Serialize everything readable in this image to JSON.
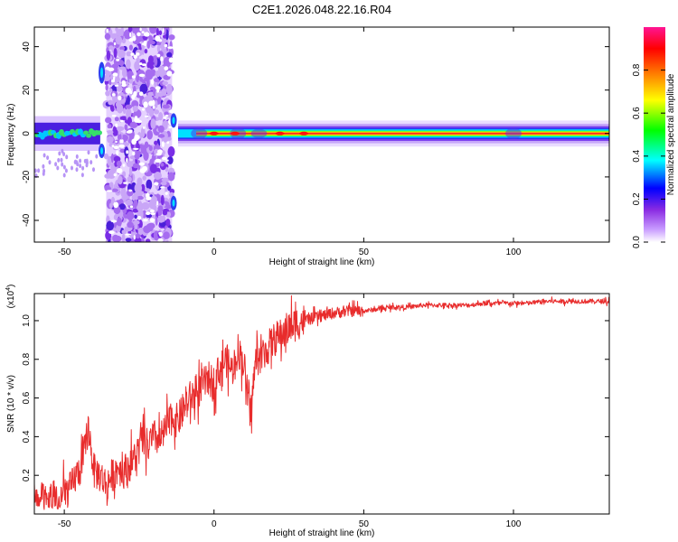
{
  "title": "C2E1.2026.048.22.16.R04",
  "colorbar": {
    "label": "Normalized spectral amplitude",
    "range": [
      0,
      1
    ],
    "ticks": [
      "0.0",
      "0.2",
      "0.4",
      "0.6",
      "0.8"
    ],
    "colormap": [
      "#ffffff",
      "#8a2be2",
      "#0000ff",
      "#00ffff",
      "#00ff00",
      "#ffff00",
      "#ff8000",
      "#ff0000",
      "#ff1493"
    ]
  },
  "chart_data": [
    {
      "type": "heatmap",
      "xlabel": "Height of straight line (km)",
      "ylabel": "Frequency (Hz)",
      "xlim": [
        -60,
        132
      ],
      "ylim": [
        -50,
        49
      ],
      "xticks": [
        "-50",
        "0",
        "50",
        "100"
      ],
      "yticks": [
        "-40",
        "-20",
        "0",
        "20",
        "40"
      ],
      "segments": [
        {
          "x": [
            -60,
            -38
          ],
          "band_hz": [
            -5,
            5
          ],
          "peak_amplitude": 0.5,
          "character": "broken cyan-green ridge near 0 Hz"
        },
        {
          "x": [
            -36,
            -14
          ],
          "band_hz": [
            -50,
            49
          ],
          "peak_amplitude": 0.25,
          "character": "broadband purple noise"
        },
        {
          "x": [
            -12,
            132
          ],
          "band_hz": [
            -3,
            3
          ],
          "peak_amplitude": 1.0,
          "character": "narrow red ridge at 0 Hz"
        }
      ]
    },
    {
      "type": "line",
      "xlabel": "Height of straight line (km)",
      "ylabel": "SNR (10 * v/v)",
      "scale_label_prefix": "(x10",
      "scale_label_exp": "4",
      "scale_label_suffix": ")",
      "xlim": [
        -60,
        132
      ],
      "ylim": [
        0,
        1.14
      ],
      "xticks": [
        "-50",
        "0",
        "50",
        "100"
      ],
      "yticks": [
        "0.2",
        "0.4",
        "0.6",
        "0.8",
        "1.0"
      ],
      "color": "#e82c2c",
      "series": [
        {
          "x": [
            -60,
            -58,
            -56,
            -54,
            -52,
            -50,
            -48,
            -46,
            -44,
            -42,
            -40,
            -38,
            -36,
            -34,
            -32,
            -30,
            -28,
            -26,
            -24,
            -22,
            -20,
            -18,
            -16,
            -14,
            -12,
            -10,
            -8,
            -6,
            -4,
            -2,
            0,
            2,
            4,
            6,
            8,
            10,
            12,
            14,
            16,
            18,
            20,
            22,
            24,
            26,
            28,
            30,
            35,
            40,
            45,
            50,
            55,
            60,
            65,
            70,
            75,
            80,
            85,
            90,
            95,
            100,
            105,
            110,
            115,
            120,
            125,
            132
          ],
          "values": [
            0.1,
            0.08,
            0.06,
            0.09,
            0.07,
            0.11,
            0.13,
            0.2,
            0.25,
            0.45,
            0.22,
            0.2,
            0.15,
            0.2,
            0.24,
            0.22,
            0.26,
            0.3,
            0.38,
            0.35,
            0.4,
            0.38,
            0.44,
            0.5,
            0.48,
            0.55,
            0.6,
            0.62,
            0.66,
            0.7,
            0.68,
            0.75,
            0.8,
            0.74,
            0.85,
            0.78,
            0.5,
            0.8,
            0.82,
            0.86,
            0.9,
            0.92,
            0.95,
            0.97,
            0.99,
            1.0,
            1.02,
            1.04,
            1.05,
            1.05,
            1.06,
            1.07,
            1.07,
            1.08,
            1.08,
            1.08,
            1.08,
            1.09,
            1.09,
            1.09,
            1.09,
            1.1,
            1.1,
            1.1,
            1.1,
            1.1
          ]
        }
      ]
    }
  ]
}
